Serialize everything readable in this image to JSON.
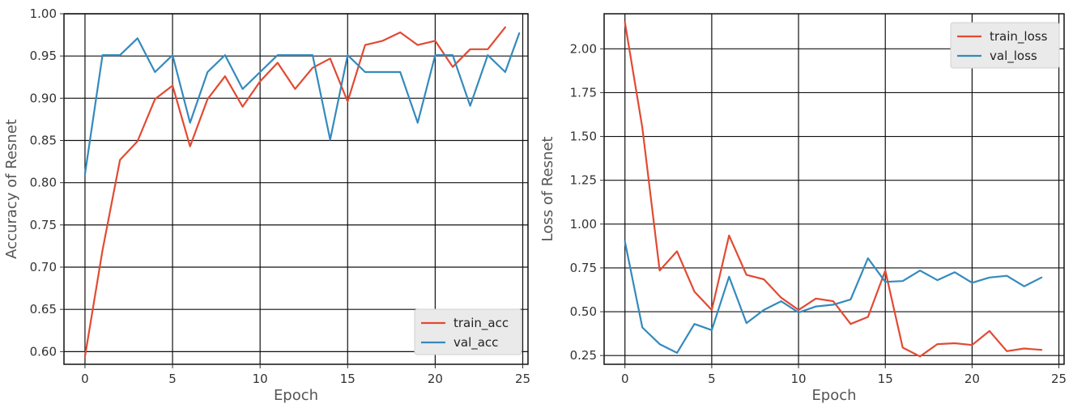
{
  "colors": {
    "train": "#e24a33",
    "val": "#348abd",
    "grid": "#111111",
    "legend_bg": "#eaeaea"
  },
  "chart_data": [
    {
      "type": "line",
      "title": "",
      "xlabel": "Epoch",
      "ylabel": "Accuracy of Resnet",
      "xlim": [
        -1.2,
        25.3
      ],
      "ylim": [
        0.585,
        1.0
      ],
      "xticks": [
        0,
        5,
        10,
        15,
        20,
        25
      ],
      "xtick_labels": [
        "0",
        "5",
        "10",
        "15",
        "20",
        "25"
      ],
      "yticks": [
        0.6,
        0.65,
        0.7,
        0.75,
        0.8,
        0.85,
        0.9,
        0.95,
        1.0
      ],
      "ytick_labels": [
        "0.60",
        "0.65",
        "0.70",
        "0.75",
        "0.80",
        "0.85",
        "0.90",
        "0.95",
        "1.00"
      ],
      "grid": true,
      "legend_position": "lower-right",
      "series": [
        {
          "name": "train_acc",
          "color_key": "train",
          "x": [
            0,
            1,
            2,
            3,
            4,
            5,
            6,
            7,
            8,
            9,
            10,
            11,
            12,
            13,
            14,
            15,
            16,
            17,
            18,
            19,
            20,
            21,
            22,
            23,
            24
          ],
          "values": [
            0.594,
            0.72,
            0.827,
            0.849,
            0.899,
            0.915,
            0.843,
            0.899,
            0.926,
            0.89,
            0.92,
            0.942,
            0.911,
            0.936,
            0.947,
            0.896,
            0.963,
            0.968,
            0.978,
            0.963,
            0.968,
            0.937,
            0.958,
            0.958,
            0.984
          ]
        },
        {
          "name": "val_acc",
          "color_key": "val",
          "x": [
            0,
            1,
            2,
            3,
            4,
            5,
            6,
            7,
            8,
            9,
            10,
            11,
            12,
            13,
            14,
            15,
            16,
            17,
            18,
            19,
            20,
            21,
            22,
            23,
            24,
            24.8
          ],
          "values": [
            0.81,
            0.951,
            0.951,
            0.971,
            0.931,
            0.951,
            0.871,
            0.931,
            0.951,
            0.911,
            0.931,
            0.951,
            0.951,
            0.951,
            0.851,
            0.951,
            0.931,
            0.931,
            0.931,
            0.871,
            0.951,
            0.951,
            0.891,
            0.951,
            0.931,
            0.977
          ]
        }
      ]
    },
    {
      "type": "line",
      "title": "",
      "xlabel": "Epoch",
      "ylabel": "Loss of Resnet",
      "xlim": [
        -1.2,
        25.3
      ],
      "ylim": [
        0.2,
        2.2
      ],
      "xticks": [
        0,
        5,
        10,
        15,
        20,
        25
      ],
      "xtick_labels": [
        "0",
        "5",
        "10",
        "15",
        "20",
        "25"
      ],
      "yticks": [
        0.25,
        0.5,
        0.75,
        1.0,
        1.25,
        1.5,
        1.75,
        2.0
      ],
      "ytick_labels": [
        "0.25",
        "0.50",
        "0.75",
        "1.00",
        "1.25",
        "1.50",
        "1.75",
        "2.00"
      ],
      "grid": true,
      "legend_position": "top-right",
      "series": [
        {
          "name": "train_loss",
          "color_key": "train",
          "x": [
            0,
            1,
            2,
            3,
            4,
            5,
            6,
            7,
            8,
            9,
            10,
            11,
            12,
            13,
            14,
            15,
            16,
            17,
            18,
            19,
            20,
            21,
            22,
            23,
            24
          ],
          "values": [
            2.15,
            1.55,
            0.735,
            0.845,
            0.615,
            0.51,
            0.935,
            0.71,
            0.685,
            0.58,
            0.51,
            0.575,
            0.56,
            0.43,
            0.47,
            0.735,
            0.295,
            0.245,
            0.315,
            0.32,
            0.31,
            0.39,
            0.275,
            0.29,
            0.282
          ]
        },
        {
          "name": "val_loss",
          "color_key": "val",
          "x": [
            0,
            1,
            2,
            3,
            4,
            5,
            6,
            7,
            8,
            9,
            10,
            11,
            12,
            13,
            14,
            15,
            16,
            17,
            18,
            19,
            20,
            21,
            22,
            23,
            24
          ],
          "values": [
            0.9,
            0.41,
            0.315,
            0.265,
            0.43,
            0.395,
            0.7,
            0.435,
            0.51,
            0.56,
            0.495,
            0.53,
            0.54,
            0.57,
            0.805,
            0.67,
            0.675,
            0.735,
            0.68,
            0.725,
            0.665,
            0.695,
            0.705,
            0.645,
            0.695
          ]
        }
      ]
    }
  ]
}
